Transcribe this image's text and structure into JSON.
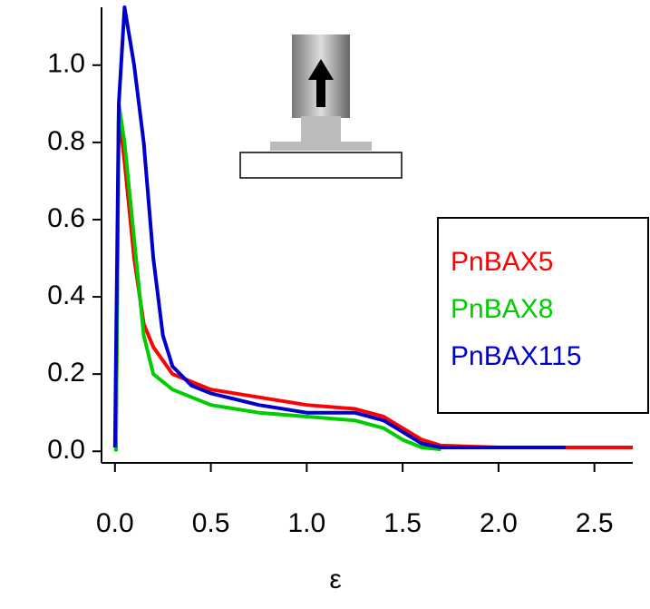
{
  "chart_data": {
    "type": "line",
    "x_label": "ε",
    "xlim": [
      -0.07,
      2.7
    ],
    "ylim": [
      -0.03,
      1.15
    ],
    "xticks": [
      {
        "value": 0,
        "label": "0.0"
      },
      0.5,
      {
        "value": 1,
        "label": "1.0"
      },
      1.5,
      {
        "value": 2,
        "label": "2.0"
      },
      2.5
    ],
    "yticks": [
      {
        "value": 0,
        "label": "0.0"
      },
      0.2,
      0.4,
      0.6,
      0.8,
      {
        "value": 1,
        "label": "1.0"
      }
    ],
    "legend": "right",
    "series": [
      {
        "name": "PnBAX5",
        "color": "#ff0000",
        "x": [
          0.005,
          0.02,
          0.05,
          0.1,
          0.15,
          0.2,
          0.3,
          0.5,
          0.75,
          1.0,
          1.25,
          1.4,
          1.5,
          1.6,
          1.7,
          2.0,
          2.5,
          2.7
        ],
        "values": [
          0,
          0.88,
          0.75,
          0.5,
          0.33,
          0.27,
          0.2,
          0.16,
          0.14,
          0.12,
          0.11,
          0.09,
          0.06,
          0.03,
          0.015,
          0.01,
          0.01,
          0.01
        ]
      },
      {
        "name": "PnBAX8",
        "color": "#00cc00",
        "x": [
          0.005,
          0.02,
          0.05,
          0.1,
          0.15,
          0.2,
          0.3,
          0.5,
          0.75,
          1.0,
          1.25,
          1.4,
          1.5,
          1.6,
          1.7
        ],
        "values": [
          0,
          0.9,
          0.8,
          0.55,
          0.3,
          0.2,
          0.16,
          0.12,
          0.1,
          0.09,
          0.08,
          0.06,
          0.03,
          0.01,
          0.005
        ]
      },
      {
        "name": "PnBAX115",
        "color": "#0000cc",
        "x": [
          0.0,
          0.02,
          0.05,
          0.1,
          0.15,
          0.2,
          0.25,
          0.3,
          0.4,
          0.5,
          0.75,
          1.0,
          1.25,
          1.4,
          1.5,
          1.6,
          1.7,
          2.0,
          2.35
        ],
        "values": [
          0.01,
          0.9,
          1.15,
          1.0,
          0.8,
          0.5,
          0.3,
          0.22,
          0.17,
          0.15,
          0.12,
          0.1,
          0.1,
          0.08,
          0.05,
          0.02,
          0.01,
          0.01,
          0.01
        ]
      }
    ]
  }
}
